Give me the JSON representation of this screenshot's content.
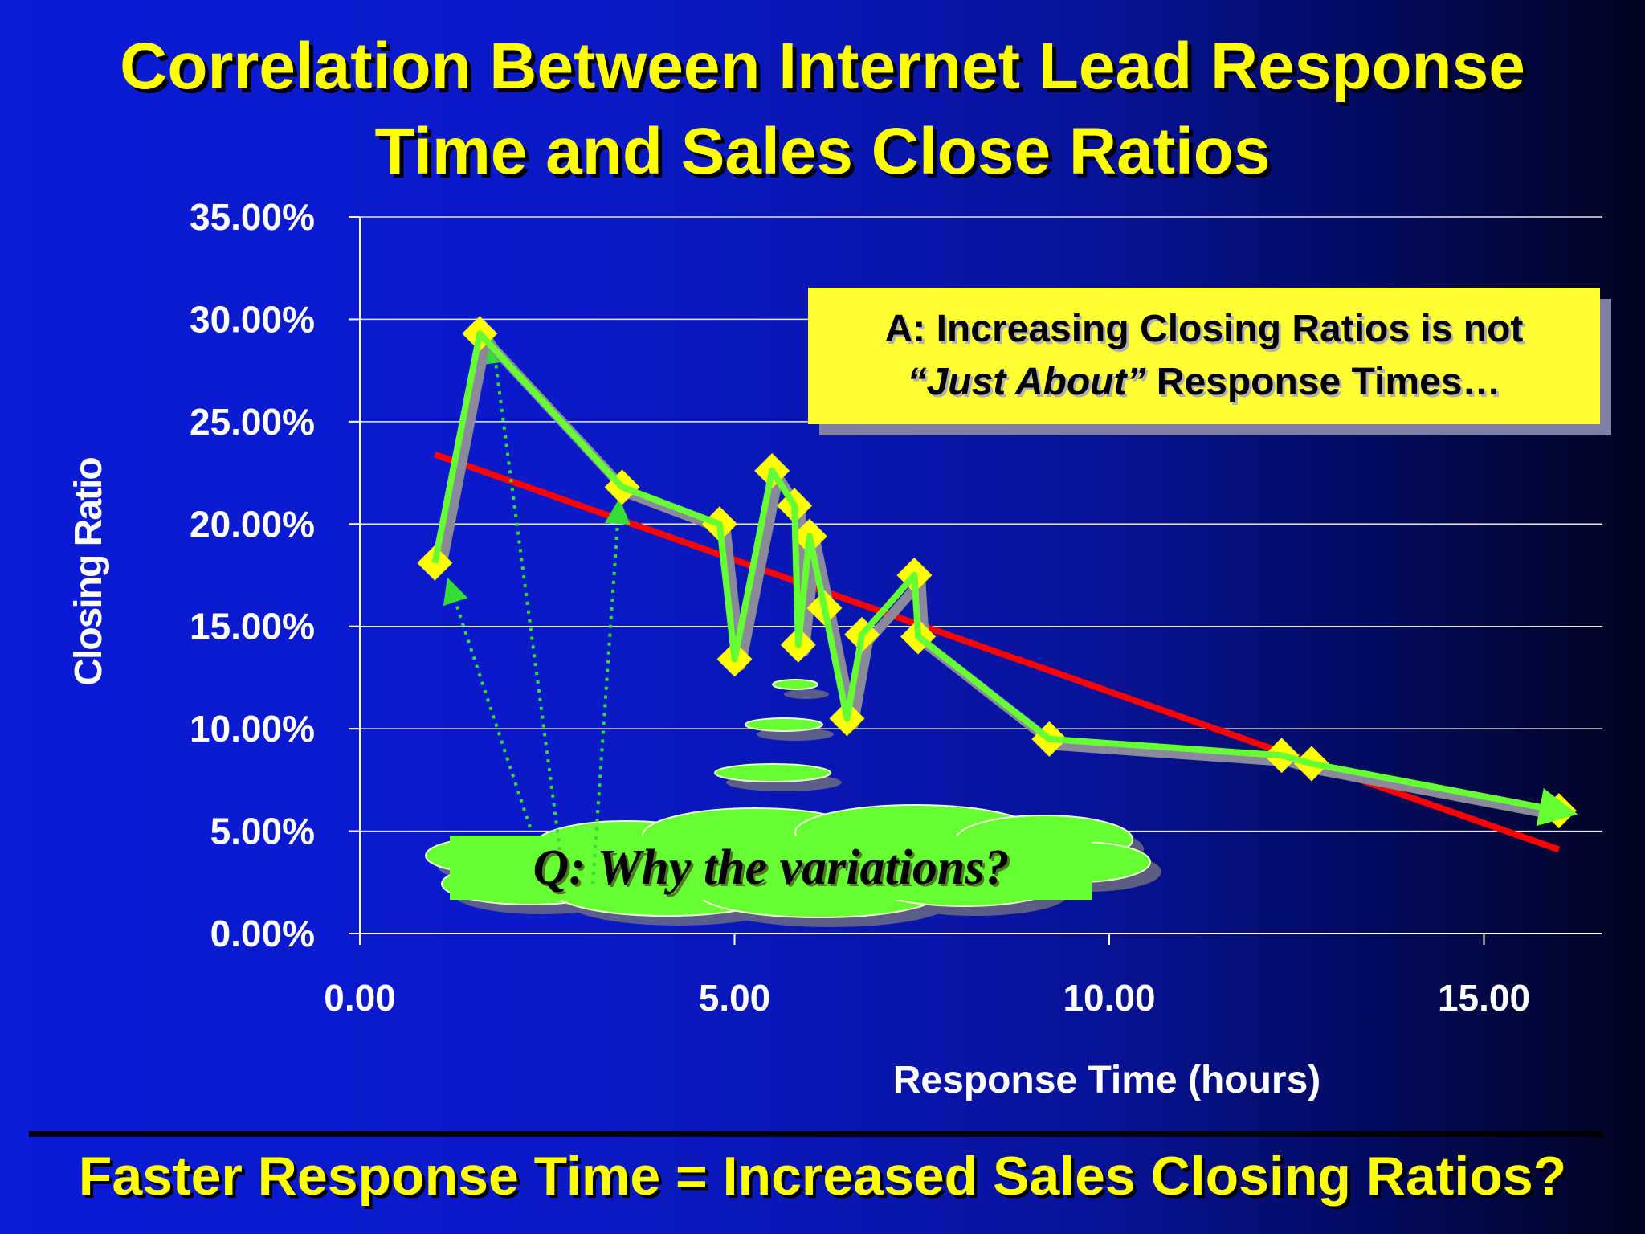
{
  "header": {
    "title_line1": "Correlation Between Internet Lead Response",
    "title_line2": "Time and Sales Close Ratios"
  },
  "chart_data": {
    "type": "line",
    "title": "Correlation Between Internet Lead Response Time and Sales Close Ratios",
    "xlabel": "Response Time (hours)",
    "ylabel": "Closing Ratio",
    "xlim": [
      0,
      16.5
    ],
    "ylim": [
      0,
      0.35
    ],
    "x_ticks": [
      0,
      5,
      10,
      15
    ],
    "x_tick_labels": [
      "0.00",
      "5.00",
      "10.00",
      "15.00"
    ],
    "y_ticks": [
      0,
      0.05,
      0.1,
      0.15,
      0.2,
      0.25,
      0.3,
      0.35
    ],
    "y_tick_labels": [
      "0.00%",
      "5.00%",
      "10.00%",
      "15.00%",
      "20.00%",
      "25.00%",
      "30.00%",
      "35.00%"
    ],
    "grid": "horizontal",
    "series": [
      {
        "type": "line",
        "color": "#66ff33",
        "marker_color": "#ffff00",
        "x": [
          1.0,
          1.6,
          3.5,
          4.8,
          5.0,
          5.5,
          5.8,
          5.85,
          6.0,
          6.2,
          6.5,
          6.7,
          7.4,
          7.45,
          9.2,
          12.3,
          12.7,
          16.0
        ],
        "y": [
          0.181,
          0.293,
          0.218,
          0.2,
          0.134,
          0.226,
          0.209,
          0.141,
          0.194,
          0.159,
          0.105,
          0.146,
          0.175,
          0.145,
          0.095,
          0.087,
          0.083,
          0.06
        ]
      },
      {
        "type": "trendline",
        "color": "#ff0000",
        "x": [
          1.0,
          16.0
        ],
        "y": [
          0.234,
          0.041
        ]
      }
    ],
    "annotations": {
      "answer_line1": "A: Increasing Closing Ratios is not",
      "answer_line2_italic": "“Just About”",
      "answer_line2_rest": " Response Times…",
      "question": "Q: Why the variations?"
    }
  },
  "footer": {
    "text": "Faster Response Time = Increased Sales Closing Ratios?"
  },
  "colors": {
    "title": "#ffff00",
    "trend": "#ff0000",
    "series_line": "#66ff33",
    "markers": "#ffff00",
    "answer_box": "#ffff33"
  }
}
